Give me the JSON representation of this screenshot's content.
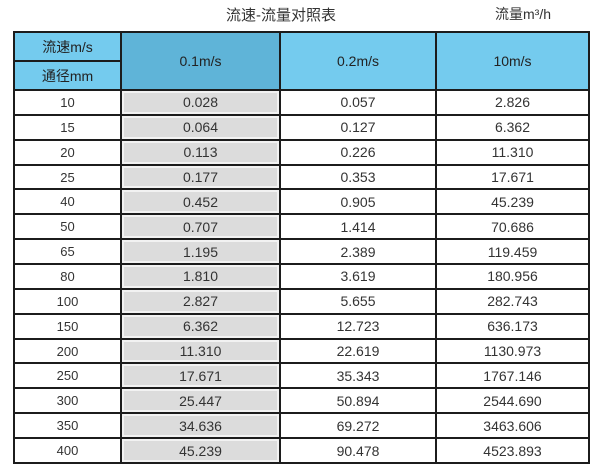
{
  "page": {
    "title_left": "流速-流量对照表",
    "title_right": "流量m³/h"
  },
  "colors": {
    "header_light_blue": "#74CBEE",
    "header_dark_blue": "#5FB4D8",
    "value_col_gray": "#DCDCDC",
    "border": "#1c1c1c",
    "text": "#333333"
  },
  "chart_data": {
    "type": "table",
    "title": "流速-流量对照表",
    "unit_label": "流量m³/h",
    "corner_top": "流速m/s",
    "corner_bottom": "通径mm",
    "velocity_columns": [
      "0.1m/s",
      "0.2m/s",
      "10m/s"
    ],
    "diameters_mm": [
      "10",
      "15",
      "20",
      "25",
      "40",
      "50",
      "65",
      "80",
      "100",
      "150",
      "200",
      "250",
      "300",
      "350",
      "400"
    ],
    "series": [
      {
        "name": "0.1m/s",
        "values": [
          "0.028",
          "0.064",
          "0.113",
          "0.177",
          "0.452",
          "0.707",
          "1.195",
          "1.810",
          "2.827",
          "6.362",
          "11.310",
          "17.671",
          "25.447",
          "34.636",
          "45.239"
        ]
      },
      {
        "name": "0.2m/s",
        "values": [
          "0.057",
          "0.127",
          "0.226",
          "0.353",
          "0.905",
          "1.414",
          "2.389",
          "3.619",
          "5.655",
          "12.723",
          "22.619",
          "35.343",
          "50.894",
          "69.272",
          "90.478"
        ]
      },
      {
        "name": "10m/s",
        "values": [
          "2.826",
          "6.362",
          "11.310",
          "17.671",
          "45.239",
          "70.686",
          "119.459",
          "180.956",
          "282.743",
          "636.173",
          "1130.973",
          "1767.146",
          "2544.690",
          "3463.606",
          "4523.893"
        ]
      }
    ],
    "layout": {
      "grid": true,
      "first_data_column_shaded": true,
      "header_merged_rowspan": "velocity columns span both header rows"
    }
  }
}
